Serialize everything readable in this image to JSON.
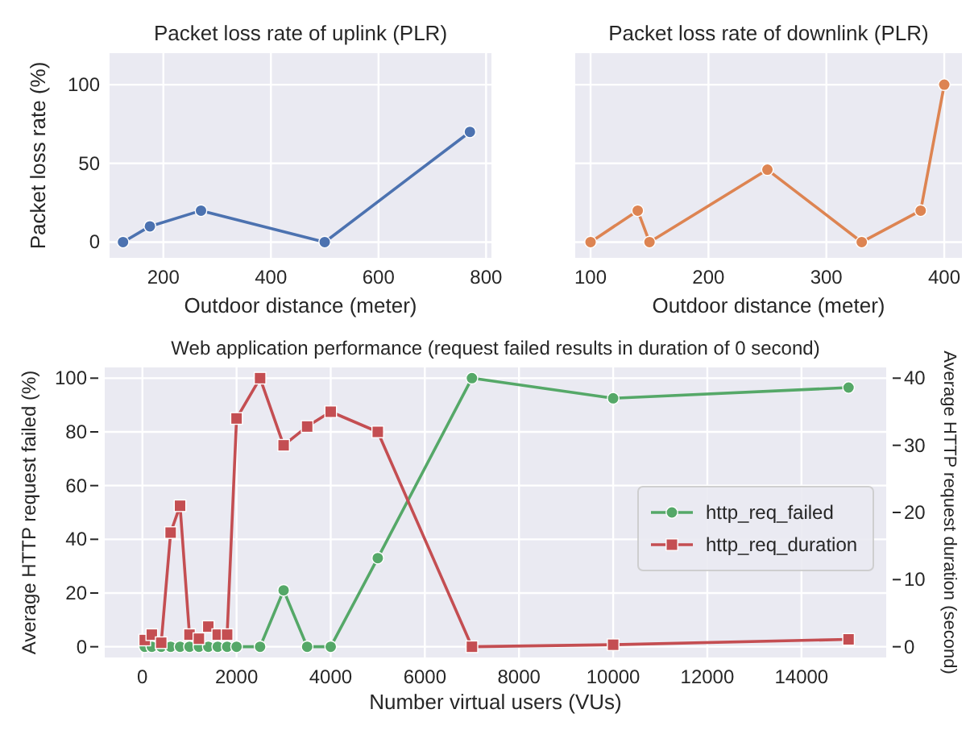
{
  "chart_data": [
    {
      "type": "line",
      "title": "Packet loss rate of uplink (PLR)",
      "xlabel": "Outdoor distance (meter)",
      "ylabel": "Packet loss rate (%)",
      "xlim": [
        100,
        810
      ],
      "xticks": [
        200,
        400,
        600,
        800
      ],
      "ylim": [
        -10,
        120
      ],
      "yticks": [
        0,
        50,
        100
      ],
      "grid": true,
      "marker": "circle",
      "series": [
        {
          "color": "#4c72b0",
          "x": [
            125,
            175,
            270,
            500,
            770
          ],
          "values": [
            0,
            10,
            20,
            0,
            70
          ]
        }
      ]
    },
    {
      "type": "line",
      "title": "Packet loss rate of downlink (PLR)",
      "xlabel": "Outdoor distance (meter)",
      "xlim": [
        87,
        415
      ],
      "xticks": [
        100,
        200,
        300,
        400
      ],
      "ylim": [
        -10,
        120
      ],
      "yticks": [
        0,
        50,
        100
      ],
      "grid": true,
      "marker": "circle",
      "tick_labels": "x",
      "series": [
        {
          "color": "#dd8452",
          "x": [
            100,
            140,
            150,
            250,
            330,
            380,
            400
          ],
          "values": [
            0,
            20,
            0,
            46,
            0,
            20,
            100
          ]
        }
      ]
    },
    {
      "type": "line",
      "title": "Web application performance (request failed results in duration of 0 second)",
      "xlabel": "Number virtual users (VUs)",
      "ylabel": "Average HTTP request failed (%)",
      "y2label": "Average HTTP request duration (second)",
      "xlim": [
        -800,
        15800
      ],
      "xticks": [
        0,
        2000,
        4000,
        6000,
        8000,
        10000,
        12000,
        14000
      ],
      "ylim": [
        -4,
        104
      ],
      "yticks": [
        0,
        20,
        40,
        60,
        80,
        100
      ],
      "y2lim": [
        -1.6,
        41.6
      ],
      "y2ticks": [
        0,
        10,
        20,
        30,
        40
      ],
      "grid": true,
      "legend": "right",
      "series": [
        {
          "name": "http_req_failed",
          "color": "#55a868",
          "marker": "circle",
          "x": [
            50,
            200,
            400,
            600,
            800,
            1000,
            1200,
            1400,
            1600,
            1800,
            2000,
            2500,
            3000,
            3500,
            4000,
            5000,
            7000,
            10000,
            15000
          ],
          "values": [
            0,
            0,
            0,
            0,
            0,
            0,
            0,
            0,
            0,
            0,
            0,
            0,
            21,
            0,
            0,
            33,
            100,
            92.5,
            96.5
          ]
        },
        {
          "name": "http_req_duration",
          "color": "#c44e52",
          "marker": "square",
          "axis": "y2",
          "x": [
            50,
            200,
            400,
            600,
            800,
            1000,
            1200,
            1400,
            1600,
            1800,
            2000,
            2500,
            3000,
            3500,
            4000,
            5000,
            7000,
            10000,
            15000
          ],
          "values": [
            1,
            1.8,
            0.6,
            17,
            21,
            1.8,
            1.2,
            3,
            1.8,
            1.8,
            34,
            40,
            30,
            32.8,
            35,
            32,
            0,
            0.3,
            1.1
          ]
        }
      ]
    }
  ]
}
